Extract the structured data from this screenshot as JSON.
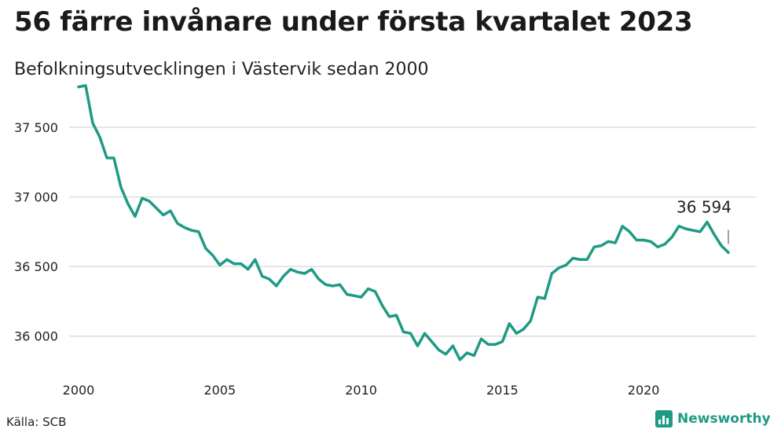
{
  "header": {
    "title": "56 färre invånare under första kvartalet 2023",
    "subtitle": "Befolkningsutvecklingen i Västervik sedan 2000"
  },
  "footer": {
    "source": "Källa: SCB",
    "brand": "Newsworthy"
  },
  "colors": {
    "line": "#1f9a86",
    "grid": "#dddddd",
    "brand": "#1f9a86"
  },
  "chart_data": {
    "type": "line",
    "title": "56 färre invånare under första kvartalet 2023",
    "subtitle": "Befolkningsutvecklingen i Västervik sedan 2000",
    "xlim": [
      2000,
      2023.25
    ],
    "ylim": [
      35750,
      37850
    ],
    "x_ticks": [
      2000,
      2005,
      2010,
      2015,
      2020
    ],
    "x_tick_labels": [
      "2000",
      "2005",
      "2010",
      "2015",
      "2020"
    ],
    "y_ticks": [
      36000,
      36500,
      37000,
      37500
    ],
    "y_tick_labels": [
      "36 000",
      "36 500",
      "37 000",
      "37 500"
    ],
    "grid": "horizontal",
    "annotation": {
      "x": 2023,
      "y": 36594,
      "label": "36 594"
    },
    "series": [
      {
        "x": [
          2000.0,
          2000.25,
          2000.5,
          2000.75,
          2001.0,
          2001.25,
          2001.5,
          2001.75,
          2002.0,
          2002.25,
          2002.5,
          2002.75,
          2003.0,
          2003.25,
          2003.5,
          2003.75,
          2004.0,
          2004.25,
          2004.5,
          2004.75,
          2005.0,
          2005.25,
          2005.5,
          2005.75,
          2006.0,
          2006.25,
          2006.5,
          2006.75,
          2007.0,
          2007.25,
          2007.5,
          2007.75,
          2008.0,
          2008.25,
          2008.5,
          2008.75,
          2009.0,
          2009.25,
          2009.5,
          2009.75,
          2010.0,
          2010.25,
          2010.5,
          2010.75,
          2011.0,
          2011.25,
          2011.5,
          2011.75,
          2012.0,
          2012.25,
          2012.5,
          2012.75,
          2013.0,
          2013.25,
          2013.5,
          2013.75,
          2014.0,
          2014.25,
          2014.5,
          2014.75,
          2015.0,
          2015.25,
          2015.5,
          2015.75,
          2016.0,
          2016.25,
          2016.5,
          2016.75,
          2017.0,
          2017.25,
          2017.5,
          2017.75,
          2018.0,
          2018.25,
          2018.5,
          2018.75,
          2019.0,
          2019.25,
          2019.5,
          2019.75,
          2020.0,
          2020.25,
          2020.5,
          2020.75,
          2021.0,
          2021.25,
          2021.5,
          2021.75,
          2022.0,
          2022.25,
          2022.5,
          2022.75,
          2023.0
        ],
        "y": [
          37790,
          37800,
          37530,
          37430,
          37280,
          37280,
          37070,
          36950,
          36860,
          36990,
          36970,
          36920,
          36870,
          36900,
          36810,
          36780,
          36760,
          36750,
          36630,
          36580,
          36510,
          36550,
          36520,
          36520,
          36480,
          36550,
          36430,
          36410,
          36360,
          36430,
          36480,
          36460,
          36450,
          36480,
          36410,
          36370,
          36360,
          36370,
          36300,
          36290,
          36280,
          36340,
          36320,
          36220,
          36140,
          36150,
          36030,
          36020,
          35930,
          36020,
          35960,
          35900,
          35870,
          35930,
          35830,
          35880,
          35860,
          35980,
          35940,
          35940,
          35960,
          36090,
          36020,
          36050,
          36110,
          36280,
          36270,
          36450,
          36490,
          36510,
          36560,
          36550,
          36550,
          36640,
          36650,
          36680,
          36670,
          36790,
          36750,
          36690,
          36690,
          36680,
          36640,
          36660,
          36710,
          36790,
          36770,
          36760,
          36750,
          36820,
          36730,
          36650,
          36600
        ]
      }
    ]
  }
}
